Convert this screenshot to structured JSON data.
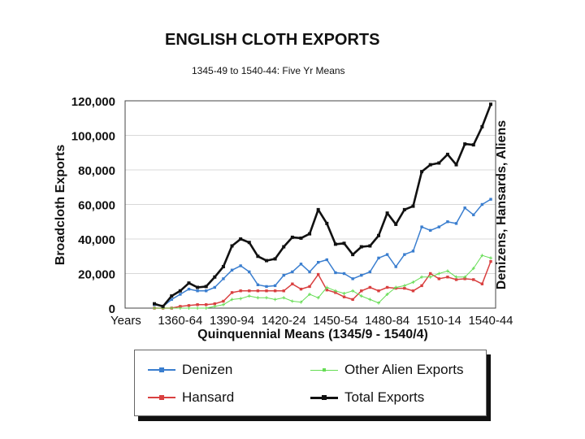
{
  "chart_data": {
    "type": "line",
    "title": "ENGLISH CLOTH EXPORTS",
    "subtitle": "1345-49 to 1540-44: Five Yr Means",
    "xlabel": "Quinquennial Means (1345/9 - 1540/4)",
    "ylabel": "Broadcloth Exports",
    "ylabel_right": "Denizens, Hansards, Aliens",
    "x_first_tick_label": "Years",
    "x_tick_labels": [
      "1360-64",
      "1390-94",
      "1420-24",
      "1450-54",
      "1480-84",
      "1510-14",
      "1540-44"
    ],
    "y_tick_labels": [
      "0",
      "20,000",
      "40,000",
      "60,000",
      "80,000",
      "100,000",
      "120,000"
    ],
    "ylim": [
      0,
      120000
    ],
    "grid": "horizontal",
    "legend_position": "below",
    "x": [
      "1345-49",
      "1350-54",
      "1355-59",
      "1360-64",
      "1365-69",
      "1370-74",
      "1375-79",
      "1380-84",
      "1385-89",
      "1390-94",
      "1395-99",
      "1400-04",
      "1405-09",
      "1410-14",
      "1415-19",
      "1420-24",
      "1425-29",
      "1430-34",
      "1435-39",
      "1440-44",
      "1445-49",
      "1450-54",
      "1455-59",
      "1460-64",
      "1465-69",
      "1470-74",
      "1475-79",
      "1480-84",
      "1485-89",
      "1490-94",
      "1495-99",
      "1500-04",
      "1505-09",
      "1510-14",
      "1515-19",
      "1520-24",
      "1525-29",
      "1530-34",
      "1535-39",
      "1540-44"
    ],
    "series": [
      {
        "name": "Denizen",
        "color": "#3a7ecf",
        "marker": "square",
        "values": [
          2000,
          1000,
          5000,
          8000,
          11000,
          10000,
          10000,
          12000,
          17000,
          22000,
          24500,
          21000,
          13500,
          12500,
          13000,
          19000,
          21000,
          25500,
          21000,
          26500,
          28000,
          20500,
          20000,
          17000,
          19000,
          21000,
          29000,
          31000,
          24000,
          31000,
          33000,
          47000,
          45000,
          47000,
          50000,
          49000,
          58000,
          54000,
          60000,
          63000
        ]
      },
      {
        "name": "Hansard",
        "color": "#d94040",
        "marker": "square",
        "values": [
          0,
          0,
          0,
          1000,
          1500,
          2000,
          2000,
          2500,
          4000,
          9000,
          10000,
          10000,
          10000,
          10000,
          10000,
          10000,
          14000,
          11000,
          12500,
          19500,
          10500,
          9000,
          6500,
          5000,
          10000,
          12000,
          10000,
          12000,
          11500,
          11500,
          10000,
          13000,
          20000,
          17000,
          18000,
          16500,
          17000,
          16500,
          14000,
          27000
        ]
      },
      {
        "name": "Other Alien Exports",
        "color": "#66dd55",
        "marker": "cross",
        "values": [
          0,
          0,
          0,
          0,
          0,
          0,
          0,
          1000,
          2000,
          5000,
          5500,
          7000,
          6000,
          6000,
          5000,
          6000,
          4000,
          3500,
          8000,
          6000,
          12000,
          10000,
          8500,
          10000,
          7000,
          5000,
          3000,
          8000,
          12000,
          13000,
          15000,
          18000,
          18000,
          20000,
          21500,
          18000,
          18000,
          23000,
          30500,
          29000
        ]
      },
      {
        "name": "Total Exports",
        "color": "#111111",
        "marker": "square",
        "values": [
          2500,
          1000,
          7000,
          10000,
          14500,
          12000,
          12500,
          18000,
          24000,
          36000,
          40000,
          38000,
          30000,
          27500,
          28500,
          35500,
          41000,
          40500,
          43000,
          57000,
          49000,
          37000,
          37500,
          31000,
          35500,
          36000,
          42000,
          55000,
          48500,
          57000,
          59000,
          79000,
          83000,
          84000,
          89000,
          83000,
          95000,
          94500,
          105000,
          118000
        ]
      }
    ]
  }
}
